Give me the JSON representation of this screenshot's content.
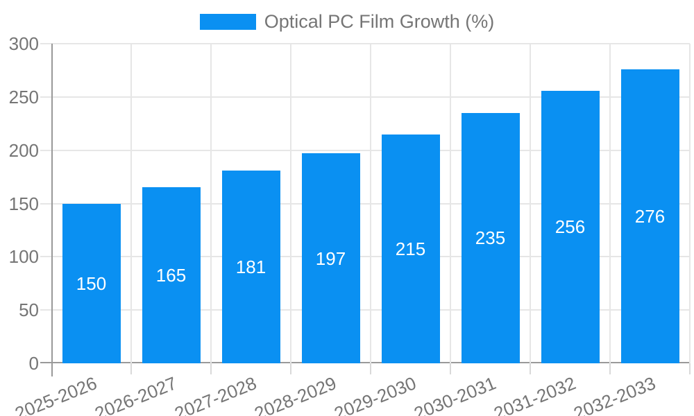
{
  "legend": {
    "label": "Optical PC Film Growth (%)"
  },
  "chart_data": {
    "type": "bar",
    "title": "Optical PC Film Growth (%)",
    "categories": [
      "2025-2026",
      "2026-2027",
      "2027-2028",
      "2028-2029",
      "2029-2030",
      "2030-2031",
      "2031-2032",
      "2032-2033"
    ],
    "values": [
      150,
      165,
      181,
      197,
      215,
      235,
      256,
      276
    ],
    "xlabel": "",
    "ylabel": "",
    "ylim": [
      0,
      300
    ],
    "yticks": [
      0,
      50,
      100,
      150,
      200,
      250,
      300
    ],
    "grid": true,
    "legend_position": "top",
    "bar_labels": "inside-center-white"
  },
  "style": {
    "bar_color": "#0a90f2",
    "text_color": "#757575",
    "grid_color": "#e6e6e6",
    "axis_color": "#999999",
    "tick_color": "#d9d9d9",
    "bar_label_color": "#ffffff"
  }
}
